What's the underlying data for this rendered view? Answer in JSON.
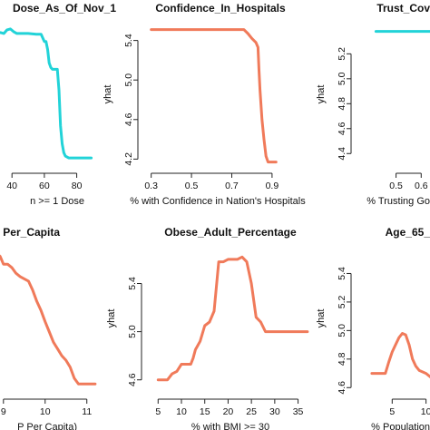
{
  "chart_data": [
    {
      "type": "line",
      "title": "Dose_As_Of_Nov_1",
      "xlabel": "n >= 1 Dose",
      "ylabel": "",
      "color": "#22d3d8",
      "xlim": [
        27,
        92
      ],
      "ylim": [
        4.05,
        5.65
      ],
      "xticks": [
        40,
        60,
        80
      ],
      "yticks": [],
      "x": [
        27,
        30,
        33,
        35,
        37,
        39,
        41,
        43,
        46,
        50,
        55,
        58,
        60,
        61,
        62,
        63,
        64,
        65,
        66,
        67,
        68,
        69,
        70,
        71,
        72,
        73,
        75,
        80,
        85,
        89
      ],
      "y": [
        5.5,
        5.53,
        5.54,
        5.53,
        5.57,
        5.58,
        5.55,
        5.53,
        5.53,
        5.53,
        5.52,
        5.52,
        5.44,
        5.44,
        5.35,
        5.2,
        5.15,
        5.13,
        5.13,
        5.13,
        5.13,
        4.9,
        4.5,
        4.3,
        4.2,
        4.16,
        4.14,
        4.14,
        4.14,
        4.14
      ]
    },
    {
      "type": "line",
      "title": "Confidence_In_Hospitals",
      "xlabel": "% with Confidence in Nation's Hospitals",
      "ylabel": "yhat",
      "color": "#f07a5a",
      "xlim": [
        0.27,
        0.95
      ],
      "ylim": [
        4.13,
        5.58
      ],
      "xticks": [
        0.3,
        0.5,
        0.7,
        0.9
      ],
      "xtick_labels": [
        "0.3",
        "0.5",
        "0.7",
        "0.9"
      ],
      "yticks": [
        4.2,
        4.6,
        5.0,
        5.4
      ],
      "ytick_labels": [
        "4.2",
        "4.6",
        "5.0",
        "5.4"
      ],
      "x": [
        0.3,
        0.4,
        0.5,
        0.6,
        0.7,
        0.76,
        0.78,
        0.8,
        0.82,
        0.83,
        0.835,
        0.84,
        0.85,
        0.86,
        0.87,
        0.88,
        0.9,
        0.92
      ],
      "y": [
        5.51,
        5.51,
        5.51,
        5.51,
        5.51,
        5.51,
        5.47,
        5.42,
        5.38,
        5.33,
        5.1,
        4.9,
        4.6,
        4.4,
        4.23,
        4.17,
        4.17,
        4.17
      ]
    },
    {
      "type": "line",
      "title": "Trust_Cov",
      "xlabel": "% Trusting Go",
      "ylabel": "yhat",
      "color": "#22d3d8",
      "xlim": [
        0.35,
        0.7
      ],
      "ylim": [
        4.3,
        5.45
      ],
      "xticks": [
        0.5,
        0.6
      ],
      "xtick_labels": [
        "0.5",
        "0.6"
      ],
      "yticks": [
        4.4,
        4.6,
        4.8,
        5.0,
        5.2
      ],
      "ytick_labels": [
        "4.4",
        "4.6",
        "4.8",
        "5.0",
        "5.2"
      ],
      "x": [
        0.42,
        0.5,
        0.6,
        0.7
      ],
      "y": [
        5.38,
        5.38,
        5.38,
        5.38
      ]
    },
    {
      "type": "line",
      "title": "Per_Capita",
      "xlabel": "P Per Capita)",
      "ylabel": "",
      "color": "#f07a5a",
      "xlim": [
        8.7,
        11.55
      ],
      "ylim": [
        4.4,
        5.7
      ],
      "xticks": [
        9,
        10,
        11
      ],
      "yticks": [],
      "x": [
        8.7,
        8.75,
        8.85,
        8.92,
        9.0,
        9.1,
        9.2,
        9.3,
        9.4,
        9.5,
        9.6,
        9.7,
        9.8,
        9.9,
        10.0,
        10.1,
        10.2,
        10.3,
        10.4,
        10.5,
        10.6,
        10.7,
        10.8,
        11.0,
        11.2
      ],
      "y": [
        5.55,
        5.6,
        5.62,
        5.6,
        5.53,
        5.53,
        5.5,
        5.45,
        5.42,
        5.4,
        5.38,
        5.3,
        5.2,
        5.12,
        5.02,
        4.93,
        4.84,
        4.78,
        4.72,
        4.68,
        4.62,
        4.52,
        4.47,
        4.47,
        4.47
      ]
    },
    {
      "type": "line",
      "title": "Obese_Adult_Percentage",
      "xlabel": "% with BMI >= 30",
      "ylabel": "yhat",
      "color": "#f07a5a",
      "xlim": [
        3,
        38
      ],
      "ylim": [
        4.5,
        5.72
      ],
      "xticks": [
        5,
        10,
        15,
        20,
        25,
        30,
        35
      ],
      "xtick_labels": [
        "5",
        "10",
        "15",
        "20",
        "25",
        "30",
        "35"
      ],
      "yticks": [
        4.6,
        5.0,
        5.4
      ],
      "ytick_labels": [
        "4.6",
        "5.0",
        "5.4"
      ],
      "x": [
        5,
        7,
        8,
        9,
        10,
        11,
        12,
        12.5,
        13,
        14,
        15,
        16,
        17,
        18,
        19,
        20,
        21,
        22,
        23,
        23.5,
        24,
        25,
        26,
        27,
        28,
        30,
        35,
        37
      ],
      "y": [
        4.6,
        4.6,
        4.65,
        4.67,
        4.73,
        4.73,
        4.73,
        4.78,
        4.85,
        4.92,
        5.05,
        5.08,
        5.17,
        5.58,
        5.58,
        5.6,
        5.6,
        5.6,
        5.62,
        5.6,
        5.58,
        5.4,
        5.12,
        5.08,
        5.0,
        5.0,
        5.0,
        5.0
      ]
    },
    {
      "type": "line",
      "title": "Age_65_",
      "xlabel": "% Population",
      "ylabel": "yhat",
      "color": "#f07a5a",
      "xlim": [
        0,
        13
      ],
      "ylim": [
        4.57,
        5.6
      ],
      "xticks": [
        5,
        10
      ],
      "xtick_labels": [
        "5",
        "10"
      ],
      "yticks": [
        4.6,
        4.8,
        5.0,
        5.2,
        5.4
      ],
      "ytick_labels": [
        "4.6",
        "4.8",
        "5.0",
        "5.2",
        "5.4"
      ],
      "x": [
        2,
        3,
        4,
        4.5,
        5,
        5.5,
        6,
        6.5,
        7,
        7.5,
        8,
        8.5,
        9,
        10,
        11,
        12,
        13
      ],
      "y": [
        4.7,
        4.7,
        4.7,
        4.78,
        4.85,
        4.9,
        4.95,
        4.98,
        4.97,
        4.9,
        4.8,
        4.75,
        4.72,
        4.7,
        4.66,
        4.63,
        4.6
      ]
    }
  ]
}
